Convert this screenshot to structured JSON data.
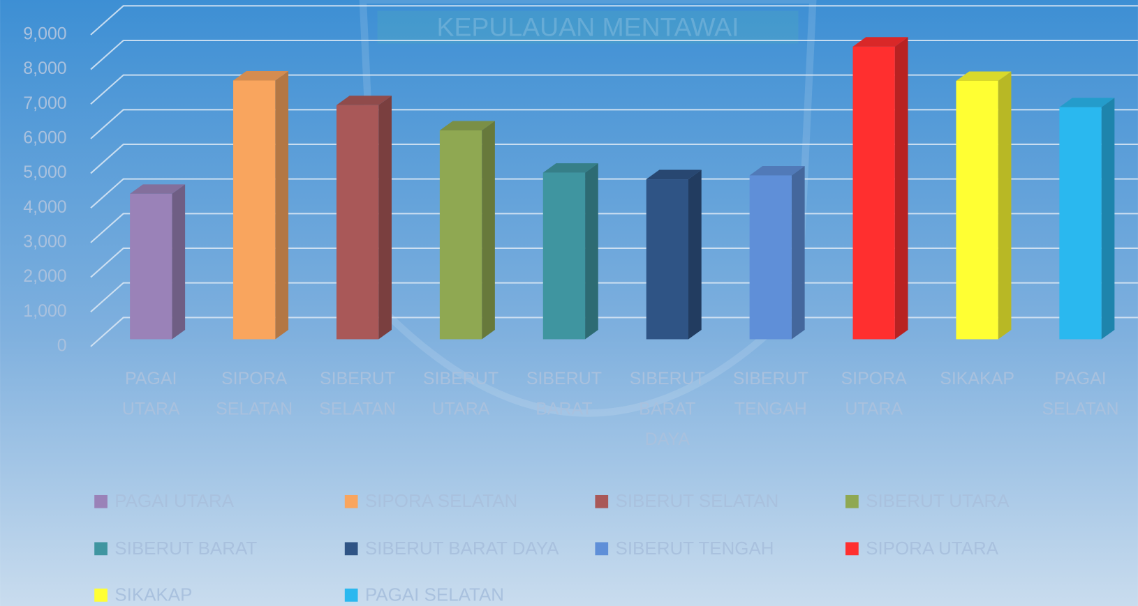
{
  "chart_data": {
    "type": "bar3d",
    "watermark": "KEPULAUAN MENTAWAI",
    "categories": [
      "PAGAI UTARA",
      "SIPORA SELATAN",
      "SIBERUT SELATAN",
      "SIBERUT UTARA",
      "SIBERUT BARAT",
      "SIBERUT BARAT DAYA",
      "SIBERUT TENGAH",
      "SIPORA UTARA",
      "SIKAKAP",
      "PAGAI SELATAN"
    ],
    "values": [
      4200,
      7470,
      6760,
      6030,
      4810,
      4620,
      4730,
      8450,
      7460,
      6700
    ],
    "colors": [
      "#9a82b8",
      "#f9a55e",
      "#a95858",
      "#8fa852",
      "#3f95a0",
      "#2f5485",
      "#5f8fd8",
      "#ff2f2f",
      "#ffff33",
      "#2ab8ef"
    ],
    "ylim": [
      0,
      9000
    ],
    "yticks": [
      0,
      {
        "value": 1000,
        "label": "1,000"
      },
      {
        "value": 2000,
        "label": "2,000"
      },
      {
        "value": 3000,
        "label": "3,000"
      },
      {
        "value": 4000,
        "label": "4,000"
      },
      {
        "value": 5000,
        "label": "5,000"
      },
      {
        "value": 6000,
        "label": "6,000"
      },
      {
        "value": 7000,
        "label": "7,000"
      },
      {
        "value": 8000,
        "label": "8,000"
      },
      {
        "value": 9000,
        "label": "9,000"
      }
    ],
    "grid": true,
    "legend": "bottom"
  }
}
